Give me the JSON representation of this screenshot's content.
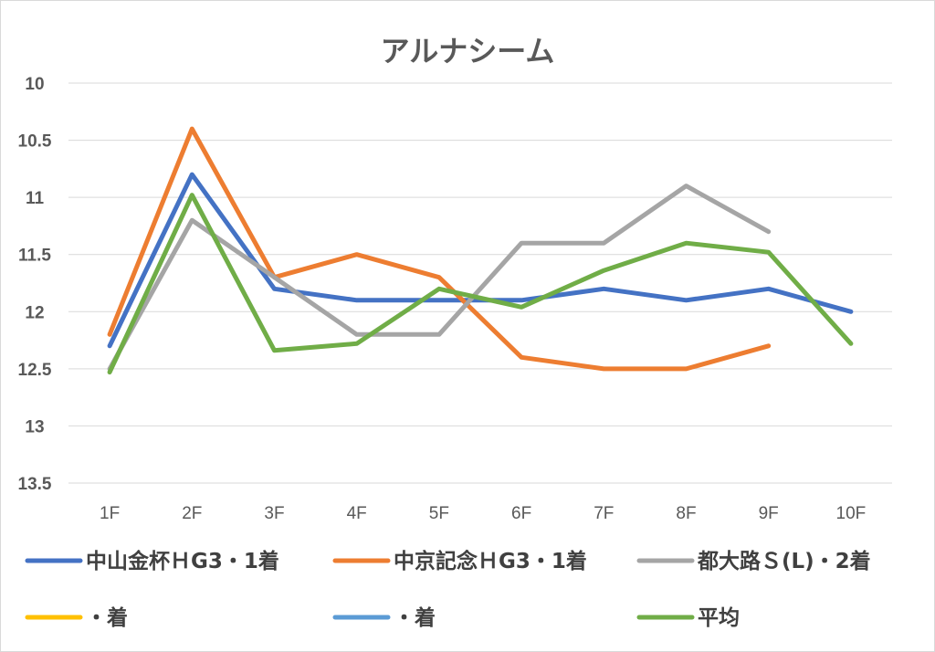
{
  "chart_data": {
    "type": "line",
    "title": "アルナシーム",
    "xlabel": "",
    "ylabel": "",
    "ylim": [
      10,
      13.5
    ],
    "y_reversed": true,
    "y_ticks": [
      "10",
      "10.5",
      "11",
      "11.5",
      "12",
      "12.5",
      "13",
      "13.5"
    ],
    "categories": [
      "1F",
      "2F",
      "3F",
      "4F",
      "5F",
      "6F",
      "7F",
      "8F",
      "9F",
      "10F"
    ],
    "grid": true,
    "legend_position": "bottom",
    "series": [
      {
        "name": "中山金杯ＨG3・1着",
        "color": "#4472c4",
        "values": [
          12.3,
          10.8,
          11.8,
          11.9,
          11.9,
          11.9,
          11.8,
          11.9,
          11.8,
          12.0
        ]
      },
      {
        "name": "中京記念ＨG3・1着",
        "color": "#ed7d31",
        "values": [
          12.2,
          10.4,
          11.7,
          11.5,
          11.7,
          12.4,
          12.5,
          12.5,
          12.3,
          null
        ]
      },
      {
        "name": "都大路Ｓ(L)・2着",
        "color": "#a5a5a5",
        "values": [
          12.5,
          11.2,
          11.7,
          12.2,
          12.2,
          11.4,
          11.4,
          10.9,
          11.3,
          null
        ]
      },
      {
        "name": "・着",
        "color": "#ffc000",
        "values": [
          null,
          null,
          null,
          null,
          null,
          null,
          null,
          null,
          null,
          null
        ]
      },
      {
        "name": "・着",
        "color": "#5b9bd5",
        "values": [
          null,
          null,
          null,
          null,
          null,
          null,
          null,
          null,
          null,
          null
        ]
      },
      {
        "name": "平均",
        "color": "#70ad47",
        "values": [
          12.53,
          10.98,
          12.34,
          12.28,
          11.8,
          11.96,
          11.64,
          11.4,
          11.48,
          12.28
        ]
      }
    ]
  }
}
